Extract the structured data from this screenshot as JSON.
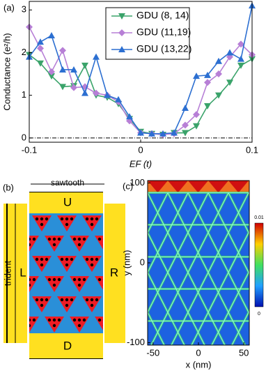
{
  "chart_data": [
    {
      "type": "line",
      "label": "(a)",
      "xlabel": "EF (t)",
      "ylabel": "Conductance (e²/h)",
      "x": [
        -0.1,
        -0.09,
        -0.08,
        -0.07,
        -0.06,
        -0.05,
        -0.04,
        -0.03,
        -0.02,
        -0.01,
        0,
        0.01,
        0.02,
        0.03,
        0.04,
        0.05,
        0.06,
        0.07,
        0.08,
        0.09,
        0.1
      ],
      "series": [
        {
          "name": "GDU (8,  14)",
          "color": "#3aa36a",
          "marker": "triangle-down",
          "values": [
            1.95,
            1.75,
            1.45,
            1.2,
            1.22,
            1.7,
            1.0,
            0.95,
            0.8,
            0.45,
            0.15,
            0.1,
            0.08,
            0.12,
            0.12,
            0.28,
            0.75,
            1.0,
            1.3,
            1.7,
            1.85
          ]
        },
        {
          "name": "GDU (11,19)",
          "color": "#b77fd6",
          "marker": "diamond",
          "values": [
            2.6,
            2.1,
            1.55,
            2.05,
            1.18,
            1.2,
            1.05,
            1.0,
            0.85,
            0.4,
            0.12,
            0.1,
            0.08,
            0.1,
            0.3,
            0.55,
            1.3,
            1.5,
            1.9,
            2.2,
            1.95
          ]
        },
        {
          "name": "GDU (13,22)",
          "color": "#2c6fd1",
          "marker": "triangle-up",
          "values": [
            1.9,
            2.25,
            2.4,
            1.6,
            1.6,
            1.05,
            1.9,
            1.0,
            0.9,
            0.5,
            0.12,
            0.1,
            0.1,
            0.12,
            0.7,
            1.45,
            1.47,
            1.8,
            2.0,
            1.85,
            3.1
          ]
        }
      ],
      "xlim": [
        -0.1,
        0.1
      ],
      "xticks": [
        -0.1,
        0,
        0.1
      ],
      "ylim": [
        -0.1,
        3.2
      ],
      "yticks": [
        0,
        1,
        2,
        3
      ],
      "hline": 0
    },
    {
      "type": "heatmap",
      "label": "(c)",
      "xlabel": "x (nm)",
      "ylabel": "y (nm)",
      "xlim": [
        -56,
        56
      ],
      "xticks": [
        -50,
        0,
        50
      ],
      "ylim": [
        -103,
        103
      ],
      "yticks": [
        -100,
        0,
        100
      ],
      "colorbar_ticks": [
        0,
        0.01
      ]
    }
  ],
  "diagram": {
    "label": "(b)",
    "top": "U",
    "bottom": "D",
    "left": "L",
    "right": "R",
    "sawtooth": "sawtooth",
    "trident": "trident"
  }
}
